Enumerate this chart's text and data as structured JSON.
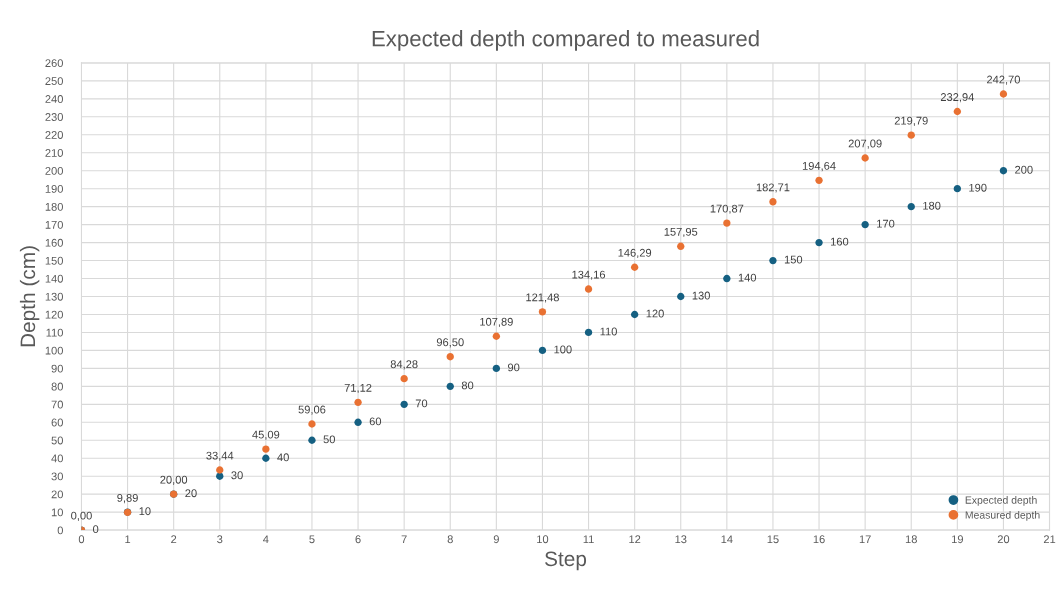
{
  "chart_data": {
    "type": "scatter",
    "title": "Expected depth compared to measured",
    "xlabel": "Step",
    "ylabel": "Depth (cm)",
    "x": [
      0,
      1,
      2,
      3,
      4,
      5,
      6,
      7,
      8,
      9,
      10,
      11,
      12,
      13,
      14,
      15,
      16,
      17,
      18,
      19,
      20
    ],
    "series": [
      {
        "name": "Expected depth",
        "color": "#156082",
        "values": [
          0,
          10,
          20,
          30,
          40,
          50,
          60,
          70,
          80,
          90,
          100,
          110,
          120,
          130,
          140,
          150,
          160,
          170,
          180,
          190,
          200
        ],
        "value_labels": [
          "0",
          "10",
          "20",
          "30",
          "40",
          "50",
          "60",
          "70",
          "80",
          "90",
          "100",
          "110",
          "120",
          "130",
          "140",
          "150",
          "160",
          "170",
          "180",
          "190",
          "200"
        ]
      },
      {
        "name": "Measured depth",
        "color": "#e97132",
        "values": [
          0,
          9.89,
          20,
          33.44,
          45.09,
          59.06,
          71.12,
          84.28,
          96.5,
          107.89,
          121.48,
          134.16,
          146.29,
          157.95,
          170.87,
          182.71,
          194.64,
          207.09,
          219.79,
          232.94,
          242.7
        ],
        "value_labels": [
          "0,00",
          "9,89",
          "20,00",
          "33,44",
          "45,09",
          "59,06",
          "71,12",
          "84,28",
          "96,50",
          "107,89",
          "121,48",
          "134,16",
          "146,29",
          "157,95",
          "170,87",
          "182,71",
          "194,64",
          "207,09",
          "219,79",
          "232,94",
          "242,70"
        ]
      }
    ],
    "xlim": [
      0,
      21
    ],
    "xticks": [
      0,
      1,
      2,
      3,
      4,
      5,
      6,
      7,
      8,
      9,
      10,
      11,
      12,
      13,
      14,
      15,
      16,
      17,
      18,
      19,
      20,
      21
    ],
    "ylim": [
      0,
      260
    ],
    "yticks": [
      0,
      10,
      20,
      30,
      40,
      50,
      60,
      70,
      80,
      90,
      100,
      110,
      120,
      130,
      140,
      150,
      160,
      170,
      180,
      190,
      200,
      210,
      220,
      230,
      240,
      250,
      260
    ],
    "grid": true,
    "legend": "bottom right",
    "marker": "circle"
  }
}
